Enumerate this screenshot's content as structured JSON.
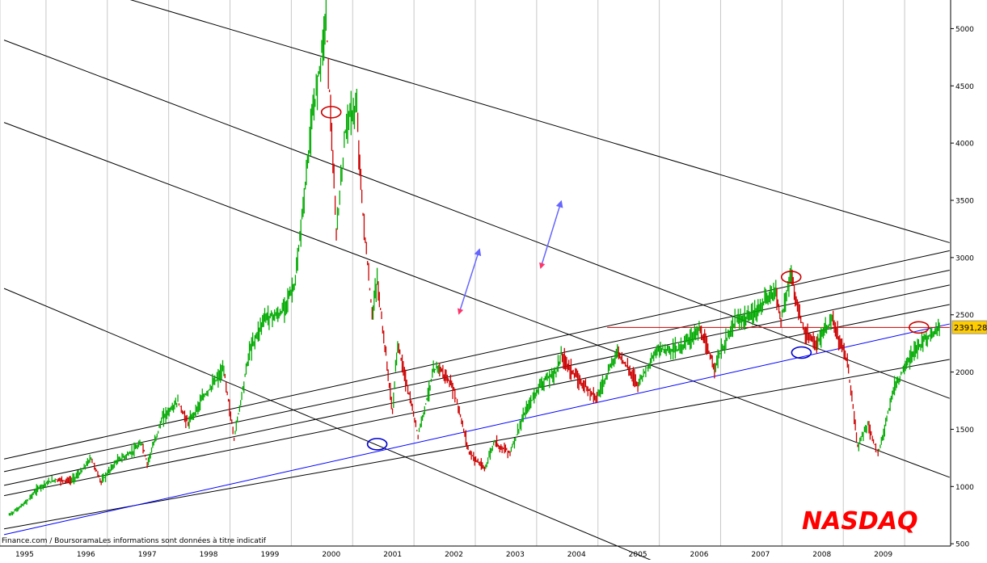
{
  "chart_data": {
    "type": "candlestick",
    "title": "NASDAQ",
    "title_color": "#ff0000",
    "source_note": "Finance.com / BoursoramaLes informations sont données à titre indicatif",
    "x_axis": {
      "ticks": [
        "1995",
        "1996",
        "1997",
        "1998",
        "1999",
        "2000",
        "2001",
        "2002",
        "2003",
        "2004",
        "2005",
        "2006",
        "2007",
        "2008",
        "2009"
      ]
    },
    "y_axis": {
      "position": "right",
      "ticks": [
        500,
        1000,
        1500,
        2000,
        2500,
        3000,
        3500,
        4000,
        4500,
        5000
      ],
      "range": [
        480,
        5250
      ],
      "grid": true
    },
    "last_value": {
      "label": "2391,28",
      "value": 2391.28,
      "color": "#ffcc00"
    },
    "colors": {
      "up": "#00aa00",
      "down": "#cc0000",
      "line": "#000000",
      "support": "#0000ff",
      "arrow": "#6666ff"
    },
    "series": [
      {
        "name": "",
        "points": [
          [
            "1995-01",
            750
          ],
          [
            "1995-04",
            850
          ],
          [
            "1995-07",
            1000
          ],
          [
            "1995-10",
            1060
          ],
          [
            "1996-01",
            1050
          ],
          [
            "1996-03",
            1120
          ],
          [
            "1996-05",
            1250
          ],
          [
            "1996-07",
            1040
          ],
          [
            "1996-10",
            1220
          ],
          [
            "1997-01",
            1300
          ],
          [
            "1997-03",
            1380
          ],
          [
            "1997-04",
            1200
          ],
          [
            "1997-07",
            1600
          ],
          [
            "1997-10",
            1740
          ],
          [
            "1997-12",
            1550
          ],
          [
            "1998-03",
            1780
          ],
          [
            "1998-07",
            2020
          ],
          [
            "1998-09",
            1420
          ],
          [
            "1998-12",
            2180
          ],
          [
            "1999-03",
            2480
          ],
          [
            "1999-06",
            2500
          ],
          [
            "1999-09",
            2780
          ],
          [
            "1999-12",
            4100
          ],
          [
            "2000-03",
            5100
          ],
          [
            "2000-05",
            3200
          ],
          [
            "2000-07",
            4200
          ],
          [
            "2000-09",
            4300
          ],
          [
            "2000-10",
            3500
          ],
          [
            "2000-12",
            2500
          ],
          [
            "2001-01",
            2800
          ],
          [
            "2001-04",
            1650
          ],
          [
            "2001-05",
            2250
          ],
          [
            "2001-09",
            1450
          ],
          [
            "2001-12",
            2000
          ],
          [
            "2002-01",
            2050
          ],
          [
            "2002-04",
            1850
          ],
          [
            "2002-07",
            1300
          ],
          [
            "2002-10",
            1150
          ],
          [
            "2002-12",
            1400
          ],
          [
            "2003-01",
            1350
          ],
          [
            "2003-03",
            1300
          ],
          [
            "2003-06",
            1650
          ],
          [
            "2003-09",
            1900
          ],
          [
            "2003-12",
            2000
          ],
          [
            "2004-01",
            2150
          ],
          [
            "2004-04",
            1950
          ],
          [
            "2004-08",
            1780
          ],
          [
            "2004-12",
            2180
          ],
          [
            "2005-04",
            1900
          ],
          [
            "2005-08",
            2200
          ],
          [
            "2005-12",
            2200
          ],
          [
            "2006-04",
            2370
          ],
          [
            "2006-07",
            2050
          ],
          [
            "2006-11",
            2440
          ],
          [
            "2007-02",
            2480
          ],
          [
            "2007-07",
            2720
          ],
          [
            "2007-08",
            2450
          ],
          [
            "2007-10",
            2860
          ],
          [
            "2007-11",
            2600
          ],
          [
            "2008-01",
            2300
          ],
          [
            "2008-03",
            2250
          ],
          [
            "2008-06",
            2450
          ],
          [
            "2008-09",
            2100
          ],
          [
            "2008-11",
            1350
          ],
          [
            "2009-01",
            1550
          ],
          [
            "2009-03",
            1270
          ],
          [
            "2009-06",
            1850
          ],
          [
            "2009-09",
            2100
          ],
          [
            "2009-12",
            2280
          ],
          [
            "2010-03",
            2390
          ]
        ]
      }
    ],
    "trendlines": [
      {
        "color": "#000000",
        "points": [
          [
            "1994-12",
            5580
          ],
          [
            "2010-05",
            3130
          ]
        ]
      },
      {
        "color": "#000000",
        "points": [
          [
            "1994-12",
            4900
          ],
          [
            "2010-05",
            1770
          ]
        ]
      },
      {
        "color": "#000000",
        "points": [
          [
            "1994-12",
            4180
          ],
          [
            "2010-05",
            1080
          ]
        ]
      },
      {
        "color": "#000000",
        "points": [
          [
            "1994-12",
            2730
          ],
          [
            "2006-04",
            180
          ]
        ]
      },
      {
        "color": "#000000",
        "points": [
          [
            "1994-12",
            1240
          ],
          [
            "2010-05",
            3060
          ]
        ]
      },
      {
        "color": "#000000",
        "points": [
          [
            "1994-12",
            1130
          ],
          [
            "2010-05",
            2890
          ]
        ]
      },
      {
        "color": "#000000",
        "points": [
          [
            "1994-12",
            1010
          ],
          [
            "2010-05",
            2760
          ]
        ]
      },
      {
        "color": "#000000",
        "points": [
          [
            "1994-12",
            920
          ],
          [
            "2010-05",
            2590
          ]
        ]
      },
      {
        "color": "#000000",
        "points": [
          [
            "1994-12",
            630
          ],
          [
            "2010-05",
            2110
          ]
        ]
      },
      {
        "color": "#0000ff",
        "points": [
          [
            "1994-12",
            580
          ],
          [
            "2010-05",
            2420
          ]
        ]
      },
      {
        "color": "#cc0000",
        "points": [
          [
            "2004-10",
            2390
          ],
          [
            "2010-05",
            2390
          ]
        ]
      }
    ],
    "markers": [
      {
        "shape": "ellipse",
        "color": "#cc0000",
        "at": [
          "2000-04",
          4270
        ]
      },
      {
        "shape": "ellipse",
        "color": "#cc0000",
        "at": [
          "2007-10",
          2830
        ]
      },
      {
        "shape": "ellipse",
        "color": "#cc0000",
        "at": [
          "2009-11",
          2390
        ]
      },
      {
        "shape": "ellipse",
        "color": "#0000cc",
        "at": [
          "2001-01",
          1370
        ]
      },
      {
        "shape": "ellipse",
        "color": "#0000cc",
        "at": [
          "2007-12",
          2170
        ]
      }
    ],
    "arrows": [
      {
        "from": [
          "2002-05",
          2510
        ],
        "to": [
          "2002-09",
          3070
        ]
      },
      {
        "from": [
          "2003-09",
          2910
        ],
        "to": [
          "2004-01",
          3490
        ]
      }
    ]
  }
}
